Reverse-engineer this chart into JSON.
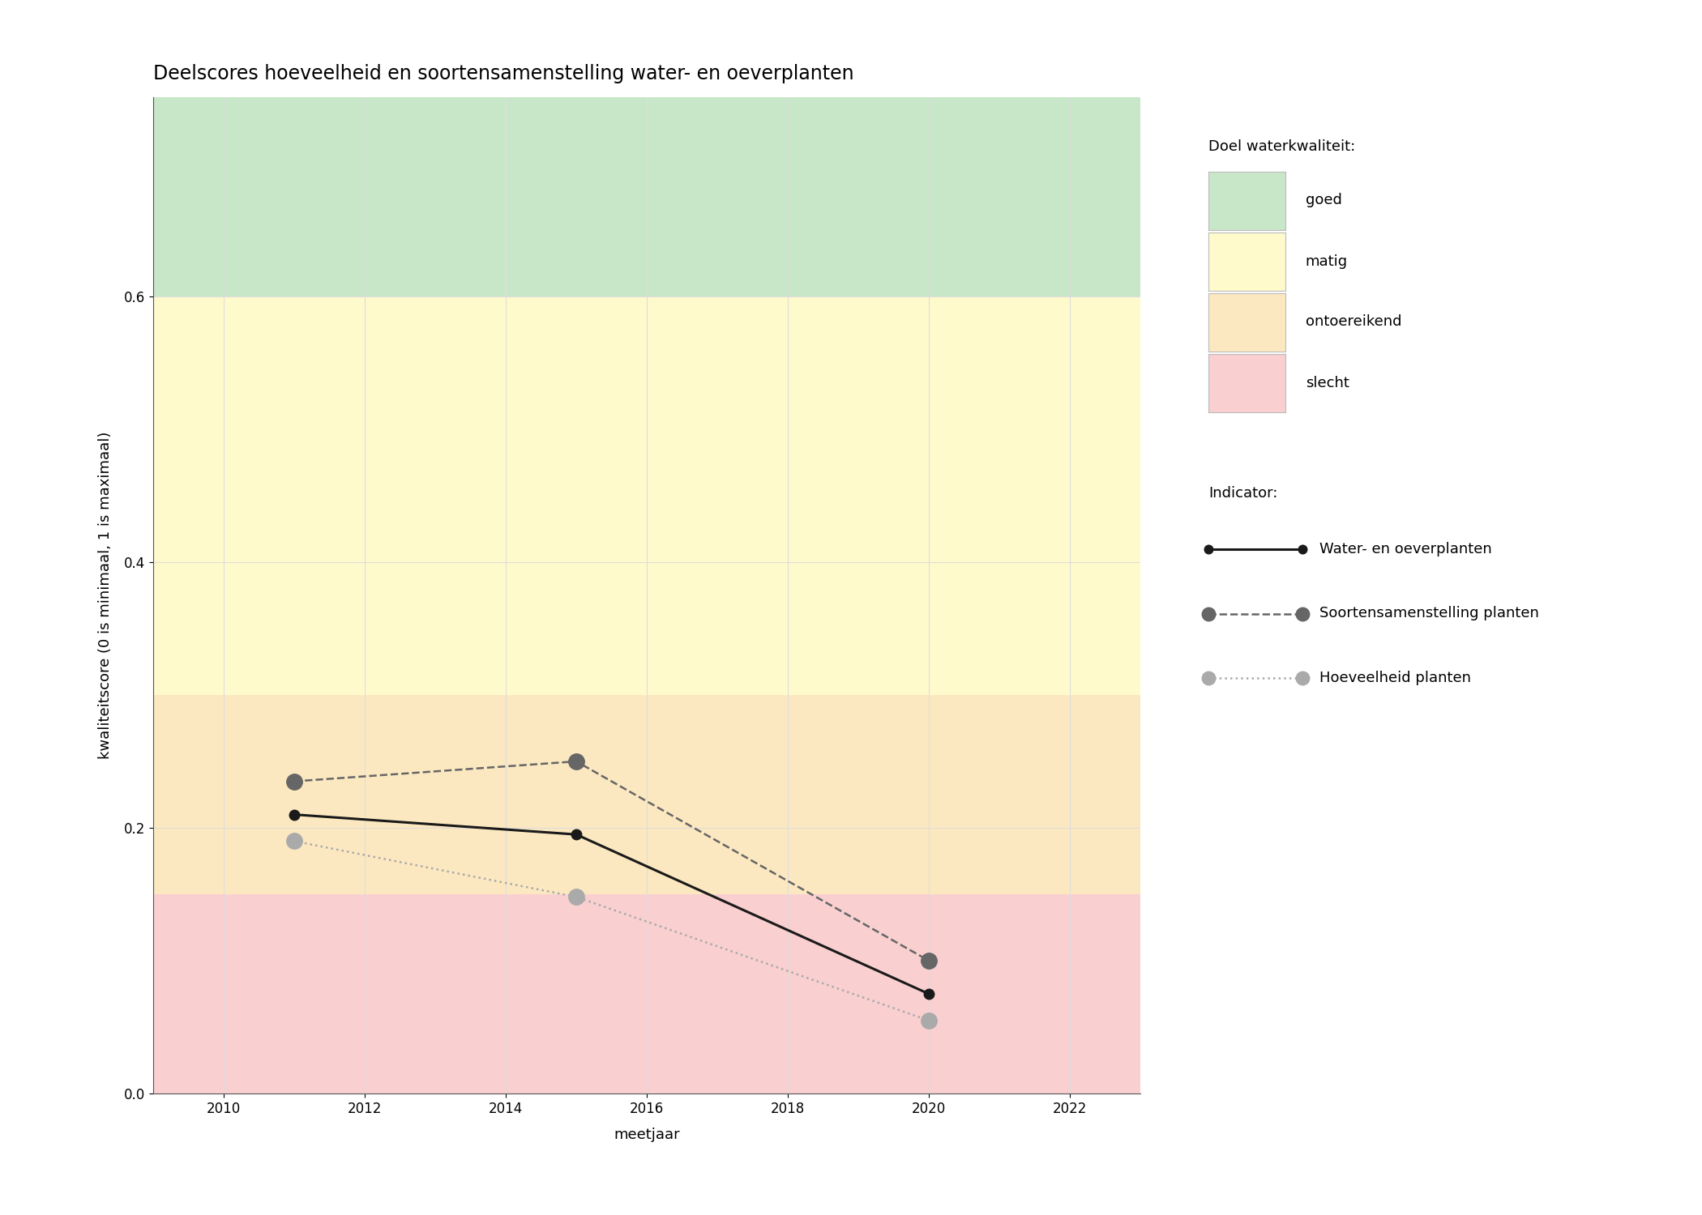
{
  "title": "Deelscores hoeveelheid en soortensamenstelling water- en oeverplanten",
  "xlabel": "meetjaar",
  "ylabel": "kwaliteitscore (0 is minimaal, 1 is maximaal)",
  "xlim": [
    2009,
    2023
  ],
  "ylim": [
    0,
    0.75
  ],
  "xticks": [
    2010,
    2012,
    2014,
    2016,
    2018,
    2020,
    2022
  ],
  "yticks": [
    0.0,
    0.2,
    0.4,
    0.6
  ],
  "bg_zones": [
    {
      "ymin": 0.6,
      "ymax": 0.75,
      "color": "#c8e6c8",
      "label": "goed"
    },
    {
      "ymin": 0.3,
      "ymax": 0.6,
      "color": "#fffacc",
      "label": "matig"
    },
    {
      "ymin": 0.15,
      "ymax": 0.3,
      "color": "#fce8c0",
      "label": "ontoereikend"
    },
    {
      "ymin": 0.0,
      "ymax": 0.15,
      "color": "#f9cfd0",
      "label": "slecht"
    }
  ],
  "series": [
    {
      "name": "Water- en oeverplanten",
      "years": [
        2011,
        2015,
        2020
      ],
      "values": [
        0.21,
        0.195,
        0.075
      ],
      "color": "#1a1a1a",
      "linestyle": "solid",
      "linewidth": 2.2,
      "marker": "o",
      "markersize": 9,
      "zorder": 5
    },
    {
      "name": "Soortensamenstelling planten",
      "years": [
        2011,
        2015,
        2020
      ],
      "values": [
        0.235,
        0.25,
        0.1
      ],
      "color": "#666666",
      "linestyle": "dashed",
      "linewidth": 1.8,
      "marker": "o",
      "markersize": 14,
      "zorder": 4
    },
    {
      "name": "Hoeveelheid planten",
      "years": [
        2011,
        2015,
        2020
      ],
      "values": [
        0.19,
        0.148,
        0.055
      ],
      "color": "#aaaaaa",
      "linestyle": "dotted",
      "linewidth": 1.8,
      "marker": "o",
      "markersize": 14,
      "zorder": 4
    }
  ],
  "legend_quality_title": "Doel waterkwaliteit:",
  "legend_indicator_title": "Indicator:",
  "legend_quality_colors": [
    "#c8e6c8",
    "#fffacc",
    "#fce8c0",
    "#f9cfd0"
  ],
  "legend_quality_labels": [
    "goed",
    "matig",
    "ontoereikend",
    "slecht"
  ],
  "title_fontsize": 17,
  "axis_label_fontsize": 13,
  "tick_fontsize": 12,
  "legend_fontsize": 13,
  "legend_title_fontsize": 13,
  "background_color": "#ffffff",
  "grid_color": "#dddddd",
  "grid_linewidth": 0.8
}
